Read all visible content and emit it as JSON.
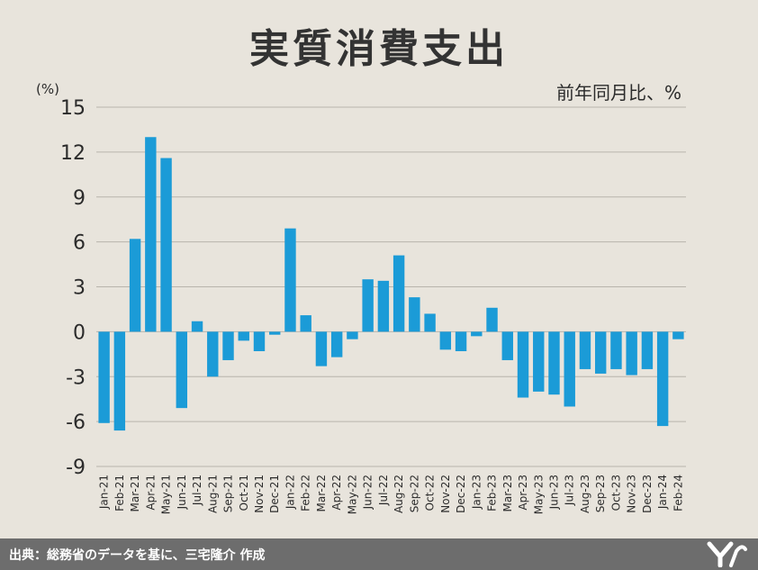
{
  "chart_data": {
    "type": "bar",
    "title": "実質消費支出",
    "subtitle": "前年同月比、%",
    "ylabel": "(%)",
    "xlabel": "",
    "ylim": [
      -9,
      15
    ],
    "yticks": [
      15,
      12,
      9,
      6,
      3,
      0,
      -3,
      -6,
      -9
    ],
    "grid": true,
    "bar_color": "#1b9bd7",
    "categories": [
      "Jan-21",
      "Feb-21",
      "Mar-21",
      "Apr-21",
      "May-21",
      "Jun-21",
      "Jul-21",
      "Aug-21",
      "Sep-21",
      "Oct-21",
      "Nov-21",
      "Dec-21",
      "Jan-22",
      "Feb-22",
      "Mar-22",
      "Apr-22",
      "May-22",
      "Jun-22",
      "Jul-22",
      "Aug-22",
      "Sep-22",
      "Oct-22",
      "Nov-22",
      "Dec-22",
      "Jan-23",
      "Feb-23",
      "Mar-23",
      "Apr-23",
      "May-23",
      "Jun-23",
      "Jul-23",
      "Aug-23",
      "Sep-23",
      "Oct-23",
      "Nov-23",
      "Dec-23",
      "Jan-24",
      "Feb-24"
    ],
    "values": [
      -6.1,
      -6.6,
      6.2,
      13.0,
      11.6,
      -5.1,
      0.7,
      -3.0,
      -1.9,
      -0.6,
      -1.3,
      -0.2,
      6.9,
      1.1,
      -2.3,
      -1.7,
      -0.5,
      3.5,
      3.4,
      5.1,
      2.3,
      1.2,
      -1.2,
      -1.3,
      -0.3,
      1.6,
      -1.9,
      -4.4,
      -4.0,
      -4.2,
      -5.0,
      -2.5,
      -2.8,
      -2.5,
      -2.9,
      -2.5,
      -6.3,
      -0.5
    ]
  },
  "footer": {
    "source": "出典：総務省のデータを基に、三宅隆介 作成"
  }
}
